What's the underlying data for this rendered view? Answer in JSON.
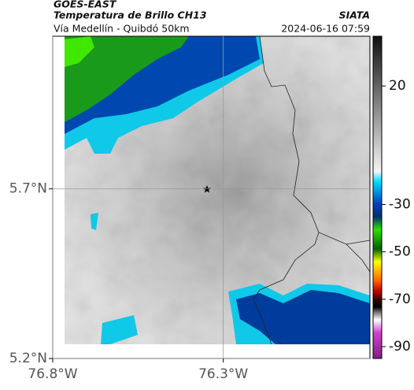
{
  "header": {
    "title": "GOES-EAST",
    "subtitle": "Temperatura de Brillo CH13",
    "source": "SIATA",
    "route": "Vía Medellín - Quibdó 50km",
    "timestamp": "2024-06-16 07:59"
  },
  "map": {
    "xlim": [
      -76.8,
      -75.87
    ],
    "ylim": [
      5.2,
      6.15
    ],
    "xticks": [
      {
        "value": -76.8,
        "label": "76.8°W"
      },
      {
        "value": -76.3,
        "label": "76.3°W"
      }
    ],
    "yticks": [
      {
        "value": 5.7,
        "label": "5.7°N"
      },
      {
        "value": 5.2,
        "label": "5.2°N"
      }
    ],
    "grid": true
  },
  "colorbar": {
    "lim": [
      41,
      -95
    ],
    "ticks": [
      20,
      -30,
      -50,
      -70,
      -90
    ]
  }
}
